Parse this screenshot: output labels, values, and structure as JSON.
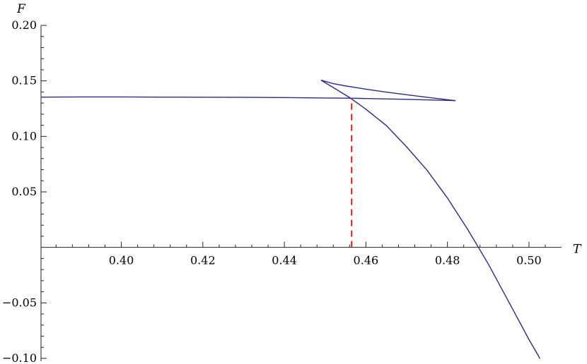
{
  "chart_data": {
    "type": "line",
    "title": "",
    "xlabel": "T",
    "ylabel": "F",
    "xlim": [
      0.3803,
      0.5073
    ],
    "ylim": [
      -0.1,
      0.2
    ],
    "x_major_ticks": [
      0.4,
      0.42,
      0.44,
      0.46,
      0.48,
      0.5
    ],
    "x_tick_labels": [
      "0.40",
      "0.42",
      "0.44",
      "0.46",
      "0.48",
      "0.50"
    ],
    "y_major_ticks": [
      -0.1,
      -0.05,
      0.05,
      0.1,
      0.15,
      0.2
    ],
    "y_tick_labels": [
      "−0.10",
      "−0.05",
      "0.05",
      "0.10",
      "0.15",
      "0.20"
    ],
    "x_minor_step": 0.004,
    "y_minor_step": 0.01,
    "grid": false,
    "series": [
      {
        "color": "#2b2b86",
        "x": [
          0.3803,
          0.39,
          0.4,
          0.41,
          0.42,
          0.43,
          0.44,
          0.45,
          0.456,
          0.46,
          0.47,
          0.482
        ],
        "y": [
          0.1354,
          0.1355,
          0.1355,
          0.1354,
          0.1353,
          0.1352,
          0.135,
          0.1346,
          0.1344,
          0.1341,
          0.1334,
          0.1322
        ]
      },
      {
        "color": "#2b2b86",
        "x": [
          0.482,
          0.475,
          0.47,
          0.465,
          0.46,
          0.455,
          0.452,
          0.449
        ],
        "y": [
          0.1322,
          0.1352,
          0.1375,
          0.1399,
          0.1425,
          0.1455,
          0.1475,
          0.1506
        ]
      },
      {
        "color": "#2b2b86",
        "x": [
          0.449,
          0.452,
          0.456,
          0.46,
          0.465,
          0.47,
          0.475,
          0.48,
          0.485,
          0.49,
          0.495,
          0.5,
          0.5027
        ],
        "y": [
          0.1506,
          0.144,
          0.135,
          0.1245,
          0.1098,
          0.0905,
          0.0695,
          0.0445,
          0.016,
          -0.0148,
          -0.0488,
          -0.083,
          -0.1002
        ]
      }
    ],
    "vertical_marker": {
      "x": 0.4565,
      "y_from": 0.0,
      "y_to": 0.1344,
      "color": "#e41a1c",
      "style": "dashed"
    }
  }
}
